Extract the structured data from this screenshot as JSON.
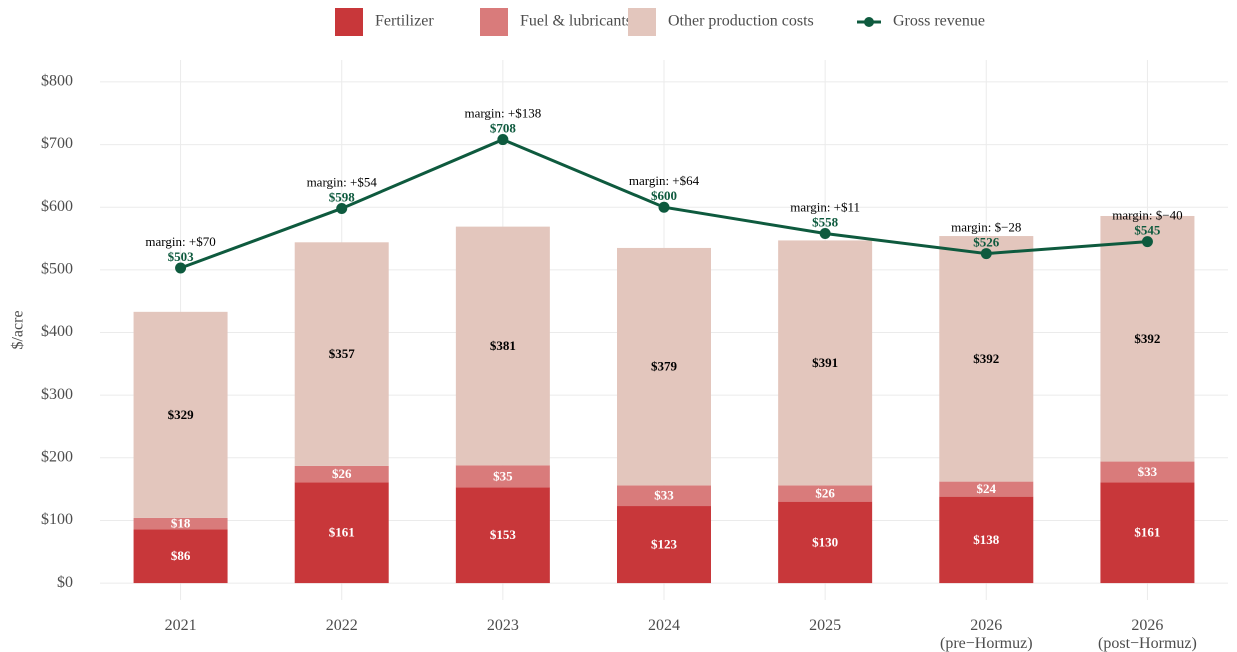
{
  "chart_data": {
    "type": "bar",
    "stacked": true,
    "ylabel": "$/acre",
    "categories": [
      [
        "2021"
      ],
      [
        "2022"
      ],
      [
        "2023"
      ],
      [
        "2024"
      ],
      [
        "2025"
      ],
      [
        "2026",
        "(pre−Hormuz)"
      ],
      [
        "2026",
        "(post−Hormuz)"
      ]
    ],
    "series": [
      {
        "name": "Fertilizer",
        "type": "bar",
        "color": "#c8373a",
        "label_color": "#ffffff",
        "values": [
          86,
          161,
          153,
          123,
          130,
          138,
          161
        ],
        "value_labels": [
          "$86",
          "$161",
          "$153",
          "$123",
          "$130",
          "$138",
          "$161"
        ]
      },
      {
        "name": "Fuel & lubricants",
        "type": "bar",
        "color": "#d97b7b",
        "label_color": "#ffffff",
        "values": [
          18,
          26,
          35,
          33,
          26,
          24,
          33
        ],
        "value_labels": [
          "$18",
          "$26",
          "$35",
          "$33",
          "$26",
          "$24",
          "$33"
        ]
      },
      {
        "name": "Other production costs",
        "type": "bar",
        "color": "#e3c6bd",
        "label_color": "#000000",
        "values": [
          329,
          357,
          381,
          379,
          391,
          392,
          392
        ],
        "value_labels": [
          "$329",
          "$357",
          "$381",
          "$379",
          "$391",
          "$392",
          "$392"
        ]
      },
      {
        "name": "Gross revenue",
        "type": "line",
        "color": "#0e5a3e",
        "label_color": "#0e5a3e",
        "values": [
          503,
          598,
          708,
          600,
          558,
          526,
          545
        ],
        "value_labels": [
          "$503",
          "$598",
          "$708",
          "$600",
          "$558",
          "$526",
          "$545"
        ]
      }
    ],
    "annotations": [
      "margin: +$70",
      "margin: +$54",
      "margin: +$138",
      "margin: +$64",
      "margin: +$11",
      "margin: $−28",
      "margin: $−40"
    ],
    "ylim": [
      -27,
      835
    ],
    "yticks": [
      {
        "value": 0,
        "label": "$0"
      },
      {
        "value": 100,
        "label": "$100"
      },
      {
        "value": 200,
        "label": "$200"
      },
      {
        "value": 300,
        "label": "$300"
      },
      {
        "value": 400,
        "label": "$400"
      },
      {
        "value": 500,
        "label": "$500"
      },
      {
        "value": 600,
        "label": "$600"
      },
      {
        "value": 700,
        "label": "$700"
      },
      {
        "value": 800,
        "label": "$800"
      }
    ],
    "grid": true,
    "legend": "top"
  }
}
